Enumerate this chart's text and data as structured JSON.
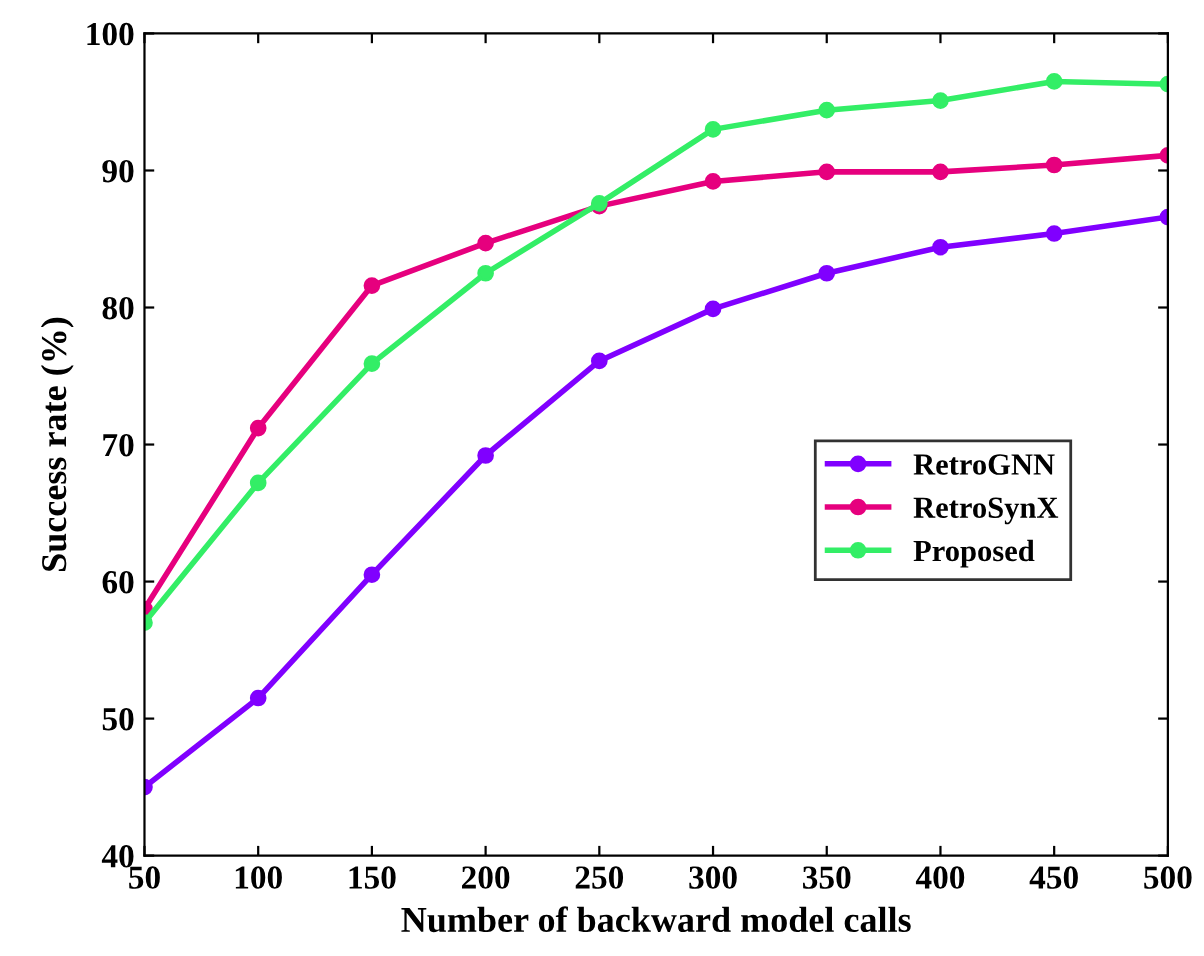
{
  "chart_data": {
    "type": "line",
    "xlabel": "Number of backward model calls",
    "ylabel": "Success rate (%)",
    "x": [
      50,
      100,
      150,
      200,
      250,
      300,
      350,
      400,
      450,
      500
    ],
    "series": [
      {
        "name": "RetroGNN",
        "color": "#8000ff",
        "values": [
          45,
          51.5,
          60.5,
          69.2,
          76.1,
          79.9,
          82.5,
          84.4,
          85.4,
          86.6
        ]
      },
      {
        "name": "RetroSynX",
        "color": "#e6007e",
        "values": [
          58,
          71.2,
          81.6,
          84.7,
          87.4,
          89.2,
          89.9,
          89.9,
          90.4,
          91.1
        ]
      },
      {
        "name": "Proposed",
        "color": "#33ee66",
        "values": [
          57,
          67.2,
          75.9,
          82.5,
          87.6,
          93.0,
          94.4,
          95.1,
          96.5,
          96.3
        ]
      }
    ],
    "xlim": [
      50,
      500
    ],
    "ylim": [
      40,
      100
    ],
    "xticks": [
      50,
      100,
      150,
      200,
      250,
      300,
      350,
      400,
      450,
      500
    ],
    "yticks": [
      40,
      50,
      60,
      70,
      80,
      90,
      100
    ],
    "grid": false,
    "legend": "right",
    "marker": "circle",
    "line_style": "solid"
  }
}
